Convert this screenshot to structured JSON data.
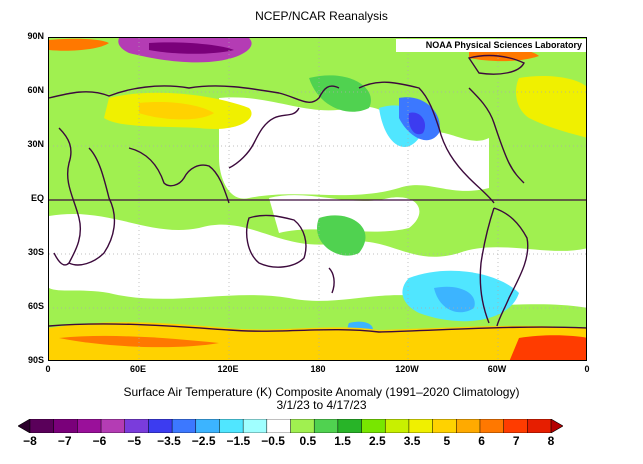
{
  "title": "NCEP/NCAR Reanalysis",
  "credit": "NOAA Physical Sciences Laboratory",
  "lat_labels": [
    "90N",
    "60N",
    "30N",
    "EQ",
    "30S",
    "60S",
    "90S"
  ],
  "lon_labels": [
    "0",
    "60E",
    "120E",
    "180",
    "120W",
    "60W",
    "0"
  ],
  "caption": {
    "line1": "Surface Air Temperature (K) Composite Anomaly (1991–2020 Climatology)",
    "line2": "3/1/23   to 4/17/23"
  },
  "colorbar": {
    "labels": [
      "−8",
      "−7",
      "−6",
      "−5",
      "−3.5",
      "−2.5",
      "−1.5",
      "−0.5",
      "0.5",
      "1.5",
      "2.5",
      "3.5",
      "5",
      "6",
      "7",
      "8"
    ],
    "colors": [
      "#2b002b",
      "#5a005a",
      "#7a007a",
      "#9a109a",
      "#b43cb4",
      "#7a3cdc",
      "#3c3cf0",
      "#3c78ff",
      "#3cb4ff",
      "#50e6ff",
      "#a0ffff",
      "#ffffff",
      "#a0f050",
      "#50d250",
      "#28b428",
      "#78e600",
      "#c8f000",
      "#f0f000",
      "#ffd200",
      "#ffaa00",
      "#ff7800",
      "#ff3c00",
      "#e61e00",
      "#b40000"
    ]
  },
  "map": {
    "type": "global temperature anomaly map",
    "accent_colors": {
      "background": "#ffffff",
      "coastline": "#3c0a3c",
      "grid": "#aaaaaa"
    }
  }
}
